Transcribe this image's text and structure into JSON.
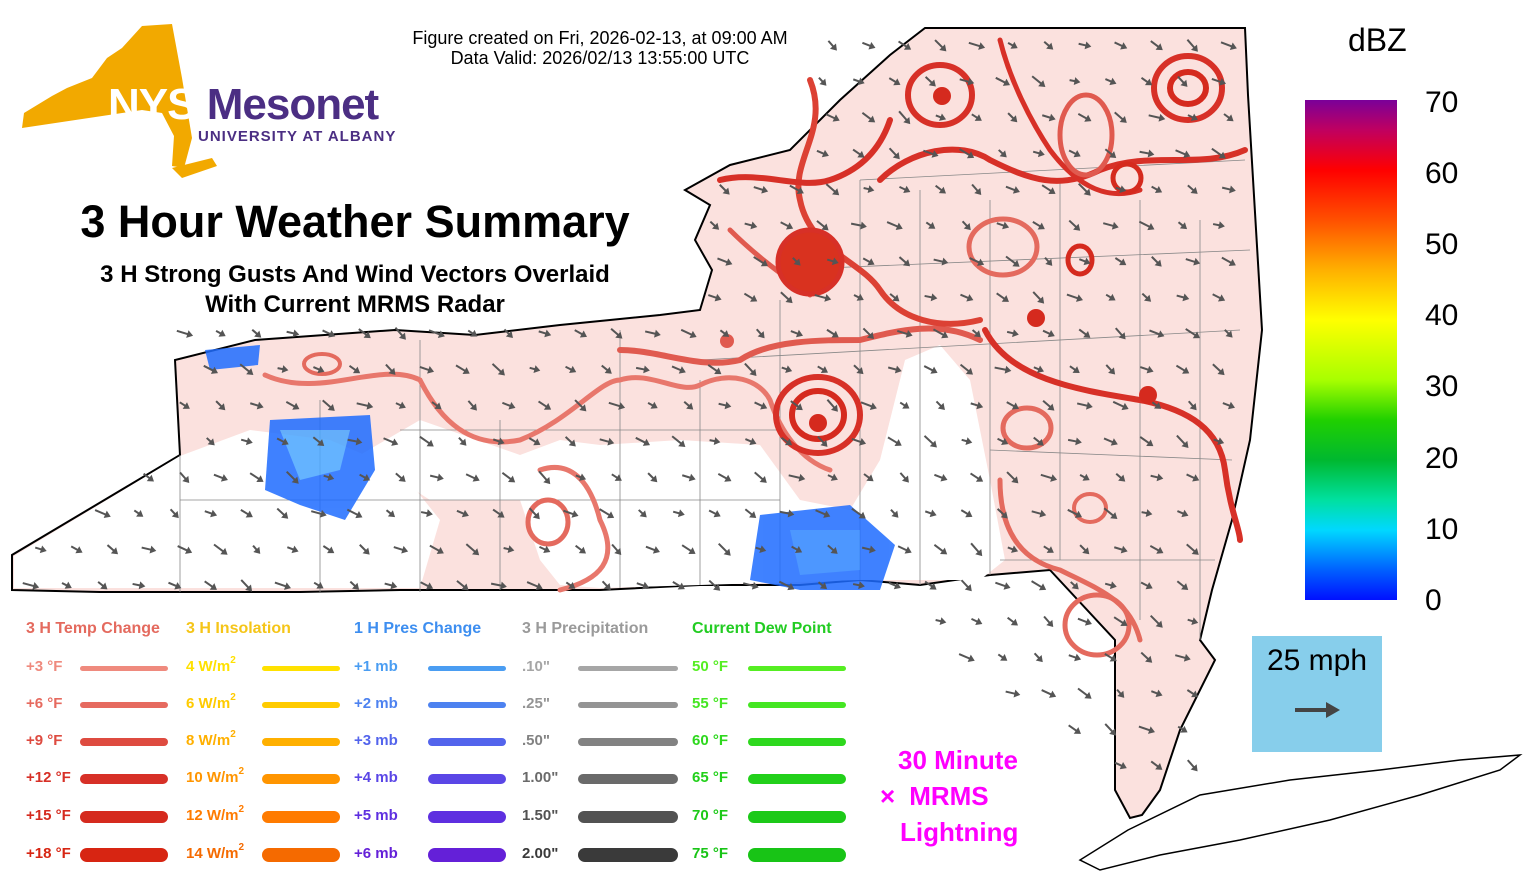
{
  "header": {
    "created_line": "Figure created on Fri, 2026-02-13, at 09:00 AM",
    "valid_line": "Data Valid: 2026/02/13 13:55:00 UTC"
  },
  "logo": {
    "nys": "NYS",
    "mesonet": "Mesonet",
    "university": "UNIVERSITY AT ALBANY",
    "gold": "#f2a900",
    "purple": "#4b2e83"
  },
  "title": "3 Hour Weather Summary",
  "subtitle": {
    "line1": "3 H Strong Gusts And Wind Vectors Overlaid",
    "line2": "With Current MRMS Radar"
  },
  "colorbar": {
    "label": "dBZ",
    "ticks": [
      "70",
      "60",
      "50",
      "40",
      "30",
      "20",
      "10",
      "0"
    ]
  },
  "wind_scale": {
    "label": "25 mph",
    "icon": "arrow-right-icon"
  },
  "lightning": {
    "line1": "30 Minute",
    "symbol": "×",
    "line2": "MRMS",
    "line3": "Lightning"
  },
  "legend": {
    "temp": {
      "header": "3 H Temp Change",
      "color": "#e46a5e",
      "items": [
        {
          "label": "+3 °F",
          "color": "#ef8a7e"
        },
        {
          "label": "+6 °F",
          "color": "#e66a5f"
        },
        {
          "label": "+9 °F",
          "color": "#de4b40"
        },
        {
          "label": "+12 °F",
          "color": "#d73027"
        },
        {
          "label": "+15 °F",
          "color": "#d52a1e"
        },
        {
          "label": "+18 °F",
          "color": "#d72512"
        }
      ]
    },
    "insolation": {
      "header": "3 H Insolation",
      "color": "#f5c518",
      "items": [
        {
          "value": "4",
          "unit": "W/m",
          "sup": "2",
          "color": "#ffe100"
        },
        {
          "value": "6",
          "unit": "W/m",
          "sup": "2",
          "color": "#ffcb00"
        },
        {
          "value": "8",
          "unit": "W/m",
          "sup": "2",
          "color": "#ffb000"
        },
        {
          "value": "10",
          "unit": "W/m",
          "sup": "2",
          "color": "#ff9500"
        },
        {
          "value": "12",
          "unit": "W/m",
          "sup": "2",
          "color": "#ff7b00"
        },
        {
          "value": "14",
          "unit": "W/m",
          "sup": "2",
          "color": "#f56a00"
        }
      ]
    },
    "pressure": {
      "header": "1 H Pres Change",
      "color": "#3d8ef0",
      "items": [
        {
          "label": "+1 mb",
          "color": "#4a9df2"
        },
        {
          "label": "+2 mb",
          "color": "#4d82f0"
        },
        {
          "label": "+3 mb",
          "color": "#5364ec"
        },
        {
          "label": "+4 mb",
          "color": "#5a46e6"
        },
        {
          "label": "+5 mb",
          "color": "#5e2fe0"
        },
        {
          "label": "+6 mb",
          "color": "#6420d8"
        }
      ]
    },
    "precip": {
      "header": "3 H Precipitation",
      "color": "#9a9a9a",
      "items": [
        {
          "label": ".10\"",
          "color": "#a6a6a6"
        },
        {
          "label": ".25\"",
          "color": "#949494"
        },
        {
          "label": ".50\"",
          "color": "#828282"
        },
        {
          "label": "1.00\"",
          "color": "#6a6a6a"
        },
        {
          "label": "1.50\"",
          "color": "#525252"
        },
        {
          "label": "2.00\"",
          "color": "#3a3a3a"
        }
      ]
    },
    "dewpoint": {
      "header": "Current Dew Point",
      "color": "#22cc22",
      "items": [
        {
          "label": "50 °F",
          "color": "#55ee22"
        },
        {
          "label": "55 °F",
          "color": "#44e622"
        },
        {
          "label": "60 °F",
          "color": "#2ed81e"
        },
        {
          "label": "65 °F",
          "color": "#22d01a"
        },
        {
          "label": "70 °F",
          "color": "#1cc918"
        },
        {
          "label": "75 °F",
          "color": "#18c416"
        }
      ]
    }
  }
}
